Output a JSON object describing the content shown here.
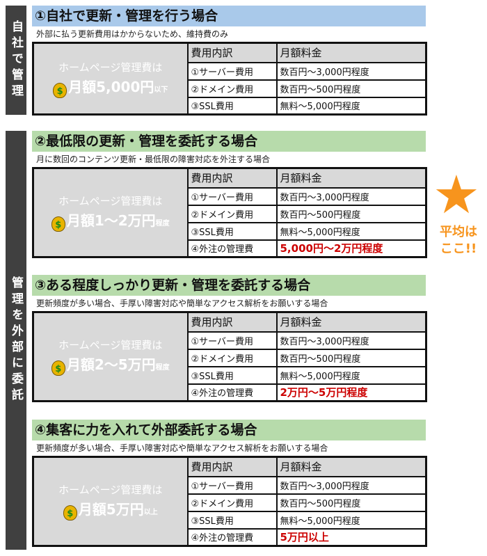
{
  "side_labels": {
    "self": "自社で管理",
    "outsource": "管理を外部に委託"
  },
  "colors": {
    "heading_blue": "#a9c9ea",
    "heading_green": "#b7dbab",
    "red": "#cc0000",
    "star": "#f7941d"
  },
  "callout": {
    "icon": "star-icon",
    "line1": "平均は",
    "line2": "ここ!!"
  },
  "table_headers": [
    "費用内訳",
    "月額料金"
  ],
  "sections": [
    {
      "title": "①自社で更新・管理を行う場合",
      "subtitle": "外部に払う更新費用はかからないため、維持費のみ",
      "lead": "ホームページ管理費は",
      "amount": "月額5,000円",
      "suffix": "以下",
      "rows": [
        [
          "①サーバー費用",
          "数百円～3,000円程度"
        ],
        [
          "②ドメイン費用",
          "数百円～500円程度"
        ],
        [
          "③SSL費用",
          "無料～5,000円程度"
        ]
      ]
    },
    {
      "title": "②最低限の更新・管理を委託する場合",
      "subtitle": "月に数回のコンテンツ更新・最低限の障害対応を外注する場合",
      "lead": "ホームページ管理費は",
      "amount": "月額1～2万円",
      "suffix": "程度",
      "rows": [
        [
          "①サーバー費用",
          "数百円～3,000円程度"
        ],
        [
          "②ドメイン費用",
          "数百円～500円程度"
        ],
        [
          "③SSL費用",
          "無料～5,000円程度"
        ],
        [
          "④外注の管理費",
          "5,000円～2万円程度"
        ]
      ]
    },
    {
      "title": "③ある程度しっかり更新・管理を委託する場合",
      "subtitle": "更新頻度が多い場合、手厚い障害対応や簡単なアクセス解析をお願いする場合",
      "lead": "ホームページ管理費は",
      "amount": "月額2～5万円",
      "suffix": "程度",
      "rows": [
        [
          "①サーバー費用",
          "数百円～3,000円程度"
        ],
        [
          "②ドメイン費用",
          "数百円～500円程度"
        ],
        [
          "③SSL費用",
          "無料～5,000円程度"
        ],
        [
          "④外注の管理費",
          "2万円～5万円程度"
        ]
      ]
    },
    {
      "title": "④集客に力を入れて外部委託する場合",
      "subtitle": "更新頻度が多い場合、手厚い障害対応や簡単なアクセス解析をお願いする場合",
      "lead": "ホームページ管理費は",
      "amount": "月額5万円",
      "suffix": "以上",
      "rows": [
        [
          "①サーバー費用",
          "数百円～3,000円程度"
        ],
        [
          "②ドメイン費用",
          "数百円～500円程度"
        ],
        [
          "③SSL費用",
          "無料～5,000円程度"
        ],
        [
          "④外注の管理費",
          "5万円以上"
        ]
      ]
    }
  ]
}
